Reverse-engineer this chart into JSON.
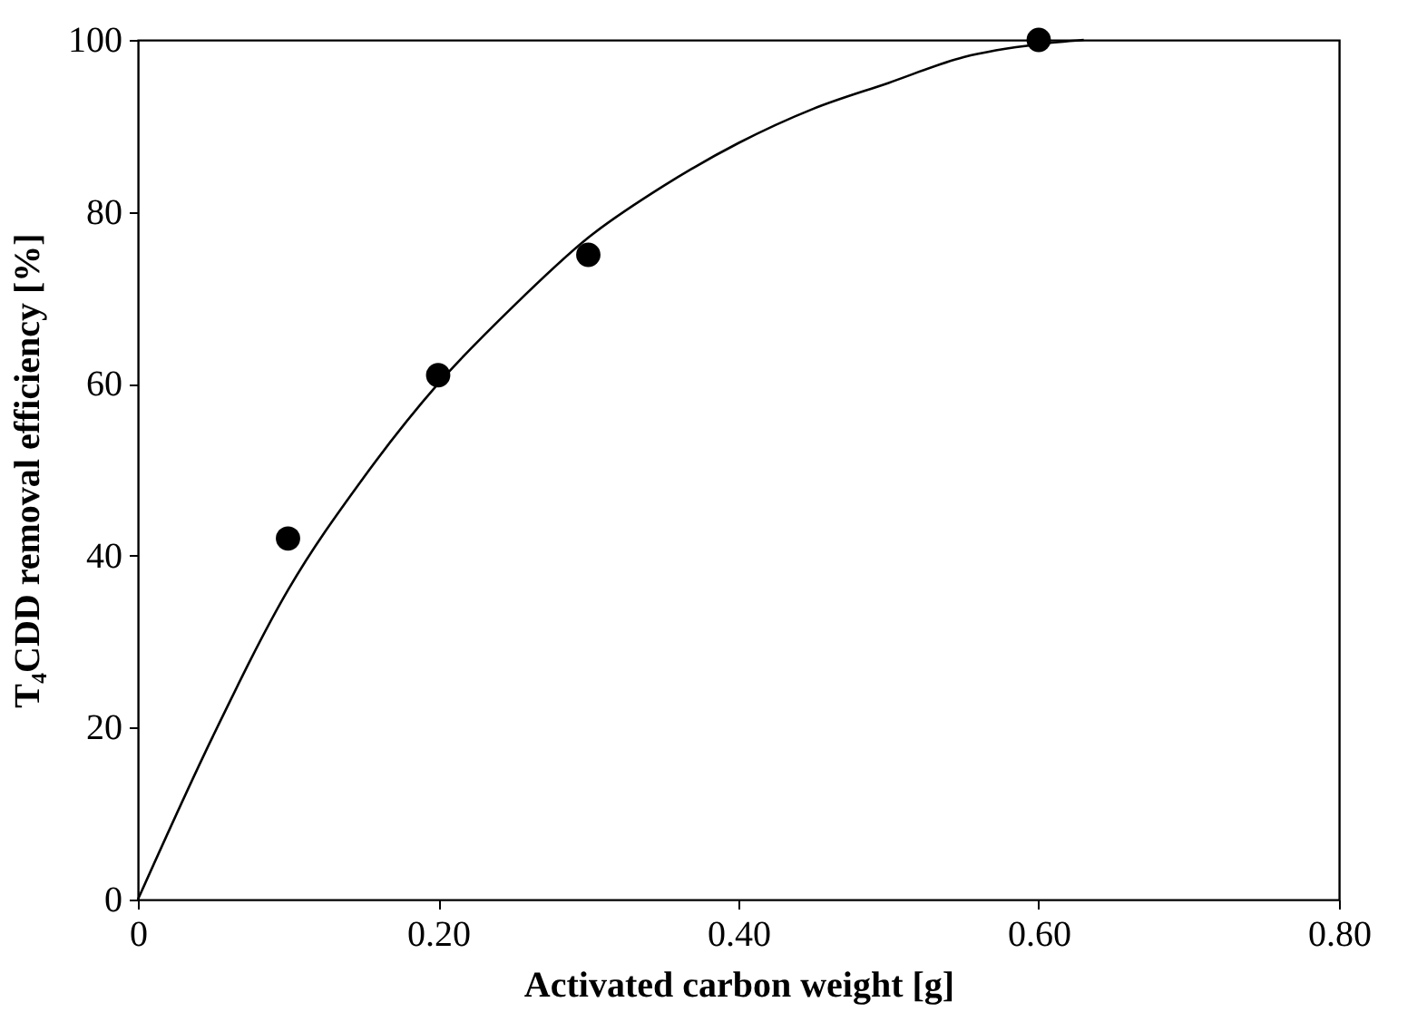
{
  "chart_data": {
    "type": "scatter",
    "xlabel": "Activated carbon weight    [g]",
    "ylabel": "T₄CDD removal efficiency    [%]",
    "xlim": [
      0,
      0.8
    ],
    "xticks": [
      0,
      {
        "value": 0.2,
        "label": "0.20"
      },
      {
        "value": 0.4,
        "label": "0.40"
      },
      {
        "value": 0.6,
        "label": "0.60"
      },
      {
        "value": 0.8,
        "label": "0.80"
      }
    ],
    "ylim": [
      0,
      100
    ],
    "yticks": [
      0,
      20,
      40,
      60,
      80,
      100
    ],
    "grid": false,
    "series": [
      {
        "color": "#000000",
        "marker": "circle",
        "x": [
          0.1,
          0.2,
          0.3,
          0.6
        ],
        "values": [
          42,
          61,
          75,
          100
        ]
      },
      {
        "type": "line",
        "color": "#000000",
        "marker": "none",
        "line_style": "solid",
        "x": [
          0,
          0.05,
          0.1,
          0.15,
          0.2,
          0.25,
          0.3,
          0.35,
          0.4,
          0.45,
          0.5,
          0.55,
          0.6,
          0.63
        ],
        "values": [
          0,
          19,
          36,
          49,
          60,
          69,
          77,
          83,
          88,
          92,
          95,
          98,
          99.5,
          100
        ]
      }
    ]
  }
}
